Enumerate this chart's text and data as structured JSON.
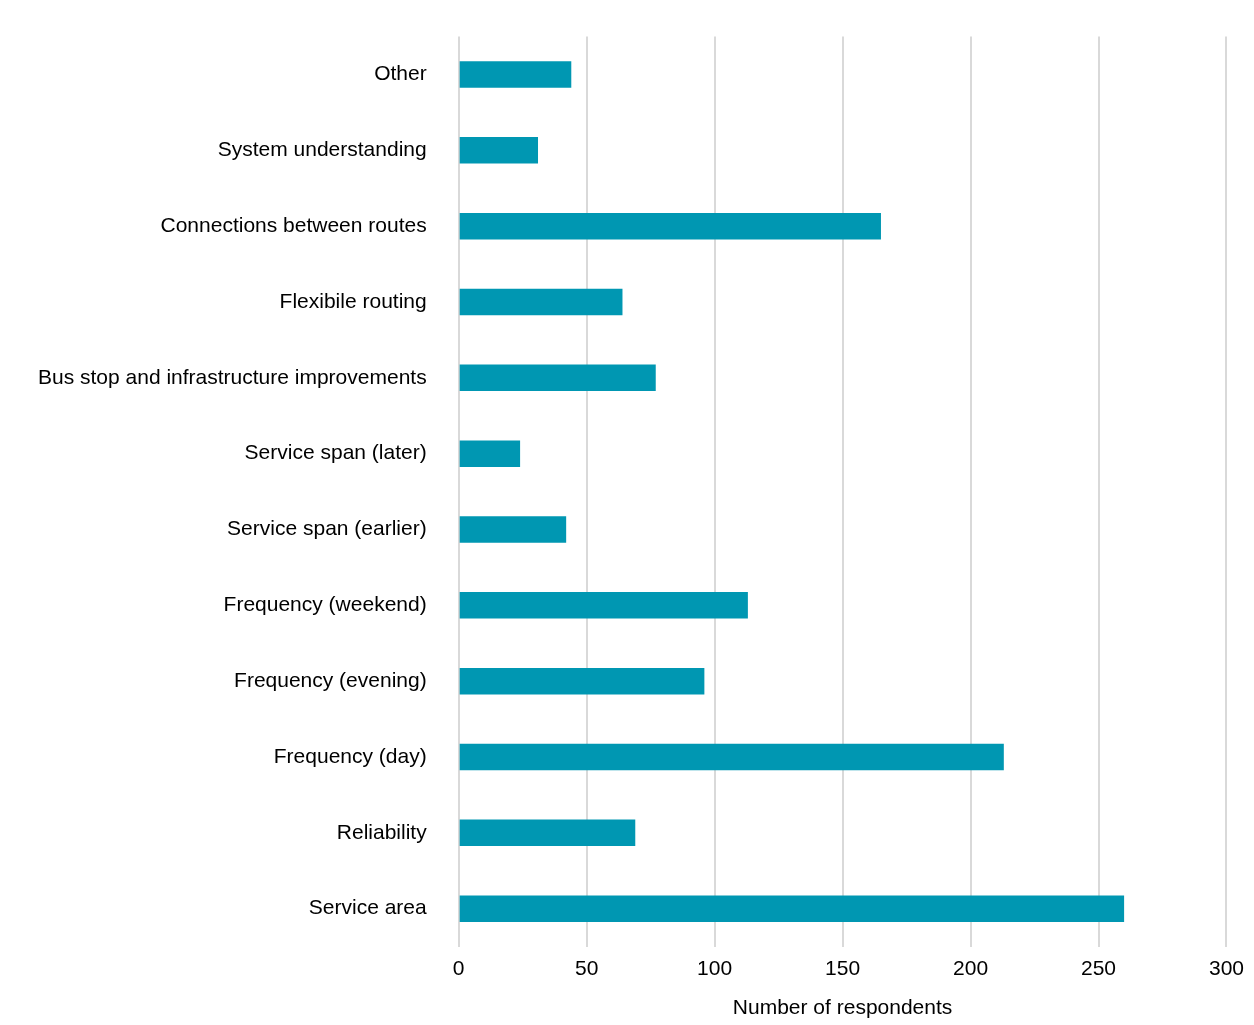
{
  "chart_data": {
    "type": "bar",
    "orientation": "horizontal",
    "xlabel": "Number of respondents",
    "categories": [
      "Other",
      "System understanding",
      "Connections between routes",
      "Flexibile routing",
      "Bus stop and infrastructure improvements",
      "Service span (later)",
      "Service span (earlier)",
      "Frequency (weekend)",
      "Frequency (evening)",
      "Frequency (day)",
      "Reliability",
      "Service area"
    ],
    "values": [
      44,
      31,
      165,
      64,
      77,
      24,
      42,
      113,
      96,
      213,
      69,
      260
    ],
    "color": "#0097b2",
    "xlim": [
      0,
      300
    ],
    "xticks": [
      0,
      50,
      100,
      150,
      200,
      250,
      300
    ],
    "grid": "x",
    "legend": false
  }
}
